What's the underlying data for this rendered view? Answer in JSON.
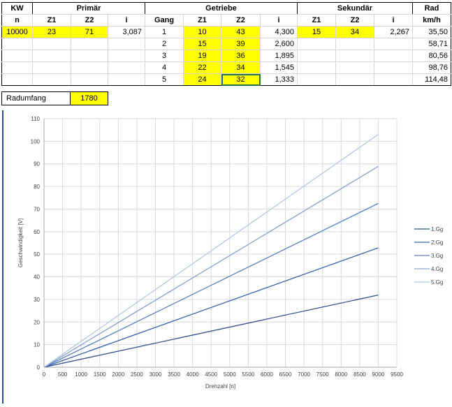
{
  "table": {
    "header1": [
      "KW",
      "Primär",
      "",
      "",
      "Getriebe",
      "",
      "",
      "",
      "Sekundär",
      "",
      "",
      "Rad"
    ],
    "header2": [
      "n",
      "Z1",
      "Z2",
      "i",
      "Gang",
      "Z1",
      "Z2",
      "i",
      "Z1",
      "Z2",
      "i",
      "km/h"
    ],
    "rows": [
      [
        "10000",
        "23",
        "71",
        "3,087",
        "1",
        "10",
        "43",
        "4,300",
        "15",
        "34",
        "2,267",
        "35,50"
      ],
      [
        "",
        "",
        "",
        "",
        "2",
        "15",
        "39",
        "2,600",
        "",
        "",
        "",
        "58,71"
      ],
      [
        "",
        "",
        "",
        "",
        "3",
        "19",
        "36",
        "1,895",
        "",
        "",
        "",
        "80,56"
      ],
      [
        "",
        "",
        "",
        "",
        "4",
        "22",
        "34",
        "1,545",
        "",
        "",
        "",
        "98,76"
      ],
      [
        "",
        "",
        "",
        "",
        "5",
        "24",
        "32",
        "1,333",
        "",
        "",
        "",
        "114,48"
      ]
    ]
  },
  "radumfang": {
    "label": "Radumfang",
    "value": "1780"
  },
  "colors": {
    "yellow": "#ffff00",
    "selection": "#217346",
    "chart_border": "#2b4fa0"
  },
  "chart_data": {
    "type": "line",
    "xlabel": "Drehzahl [n]",
    "ylabel": "Geschwindigkeit  [V]",
    "xlim": [
      0,
      9500
    ],
    "ylim": [
      0,
      110
    ],
    "xticks": [
      0,
      500,
      1000,
      1500,
      2000,
      2500,
      3000,
      3500,
      4000,
      4500,
      5000,
      5500,
      6000,
      6500,
      7000,
      7500,
      8000,
      8500,
      9000,
      9500
    ],
    "yticks": [
      0,
      10,
      20,
      30,
      40,
      50,
      60,
      70,
      80,
      90,
      100,
      110
    ],
    "grid": true,
    "legend_position": "right",
    "x": [
      0,
      9000
    ],
    "series": [
      {
        "name": "1.Gg",
        "values": [
          0,
          31.95
        ],
        "color": "#2f4f8a"
      },
      {
        "name": "2.Gg",
        "values": [
          0,
          52.84
        ],
        "color": "#3a63a8"
      },
      {
        "name": "3.Gg",
        "values": [
          0,
          72.5
        ],
        "color": "#5a7fbf"
      },
      {
        "name": "4.Gg",
        "values": [
          0,
          88.88
        ],
        "color": "#86a1cf"
      },
      {
        "name": "5.Gg",
        "values": [
          0,
          103.03
        ],
        "color": "#b5c6e3"
      }
    ]
  }
}
